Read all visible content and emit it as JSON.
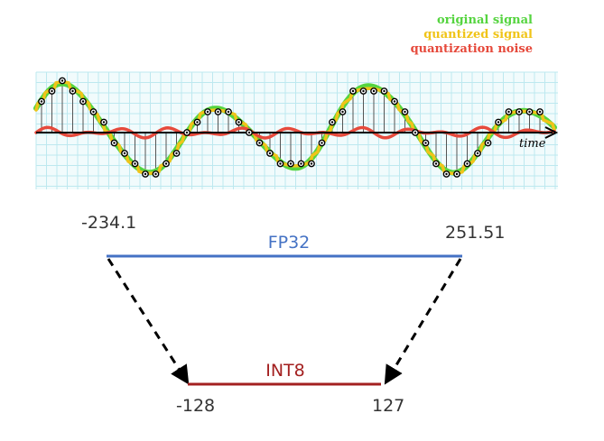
{
  "signal_plot": {
    "legend": {
      "original": "original signal",
      "quantized": "quantized signal",
      "noise": "quantization noise"
    },
    "axis_label": "time",
    "colors": {
      "original": "#55d43f",
      "quantized": "#f0c419",
      "noise": "#e64a3c",
      "grid": "#bde8ef",
      "grid_bg": "#f1fbfc"
    },
    "arrow_icon": "arrow-right-icon"
  },
  "mapping": {
    "fp32": {
      "label": "FP32",
      "min": "-234.1",
      "max": "251.51",
      "color": "#4472c4"
    },
    "int8": {
      "label": "INT8",
      "min": "-128",
      "max": "127",
      "color": "#a32020"
    },
    "arrow_icon": "dashed-arrow-down-icon"
  }
}
